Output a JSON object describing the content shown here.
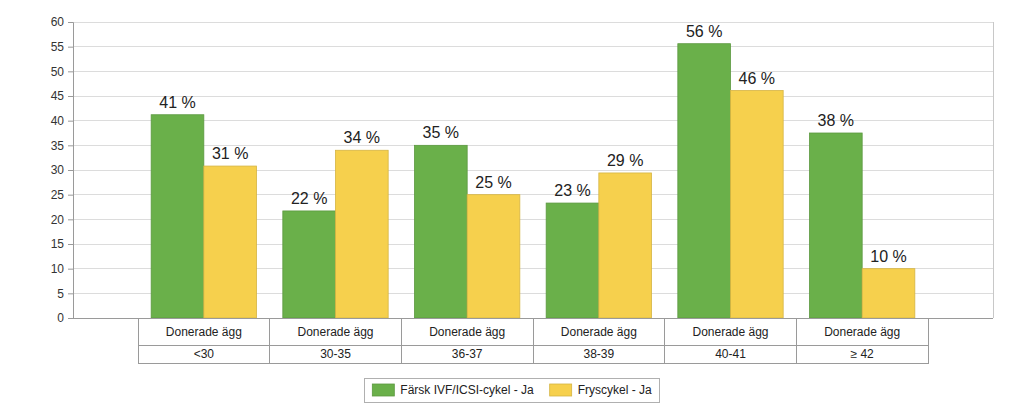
{
  "chart_data": {
    "type": "bar",
    "categories": [
      [
        "Donerade ägg",
        "<30"
      ],
      [
        "Donerade ägg",
        "30-35"
      ],
      [
        "Donerade ägg",
        "36-37"
      ],
      [
        "Donerade ägg",
        "38-39"
      ],
      [
        "Donerade ägg",
        "40-41"
      ],
      [
        "Donerade ägg",
        "≥ 42"
      ]
    ],
    "series": [
      {
        "name": "Färsk IVF/ICSI-cykel - Ja",
        "color": "#6ab04a",
        "values": [
          41.2,
          21.7,
          35.0,
          23.3,
          55.6,
          37.5
        ],
        "value_labels": [
          "41 %",
          "22 %",
          "35 %",
          "23 %",
          "56 %",
          "38 %"
        ]
      },
      {
        "name": "Fryscykel - Ja",
        "color": "#f6d04d",
        "values": [
          30.8,
          34.0,
          25.0,
          29.4,
          46.1,
          10.0
        ],
        "value_labels": [
          "31 %",
          "34 %",
          "25 %",
          "29 %",
          "46 %",
          "10 %"
        ]
      }
    ],
    "ylim": [
      0,
      60
    ],
    "yticks": [
      0,
      5,
      10,
      15,
      20,
      25,
      30,
      35,
      40,
      45,
      50,
      55,
      60
    ],
    "grid": true,
    "data_labels": true,
    "legend": "bottom"
  }
}
